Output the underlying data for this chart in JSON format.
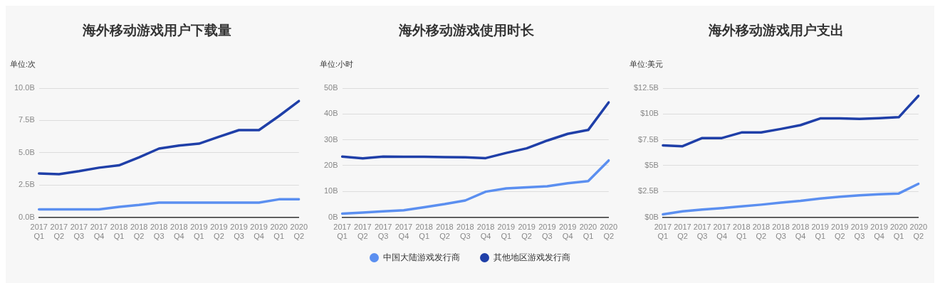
{
  "chart_data": [
    {
      "type": "line",
      "title": "海外移动游戏用户下载量",
      "ylabel": "单位:次",
      "categories": [
        "2017 Q1",
        "2017 Q2",
        "2017 Q3",
        "2017 Q4",
        "2018 Q1",
        "2018 Q2",
        "2018 Q3",
        "2018 Q4",
        "2019 Q1",
        "2019 Q2",
        "2019 Q3",
        "2019 Q4",
        "2020 Q1",
        "2020 Q2"
      ],
      "series": [
        {
          "name": "中国大陆游戏发行商",
          "color": "#5b8ff0",
          "values": [
            0.61,
            0.61,
            0.61,
            0.61,
            0.8,
            0.95,
            1.14,
            1.14,
            1.14,
            1.14,
            1.14,
            1.14,
            1.39,
            1.39
          ]
        },
        {
          "name": "其他地区游戏发行商",
          "color": "#1f3fa8",
          "values": [
            3.39,
            3.34,
            3.57,
            3.84,
            4.02,
            4.64,
            5.32,
            5.55,
            5.7,
            6.23,
            6.75,
            6.75,
            7.84,
            9.0
          ]
        }
      ],
      "ylim": [
        0,
        10
      ],
      "yticks": [
        {
          "value": 0,
          "label": "0.0B"
        },
        {
          "value": 2.5,
          "label": "2.5B"
        },
        {
          "value": 5,
          "label": "5.0B"
        },
        {
          "value": 7.5,
          "label": "7.5B"
        },
        {
          "value": 10,
          "label": "10.0B"
        }
      ],
      "grid": "y",
      "marker": "none",
      "legend": "bottom"
    },
    {
      "type": "line",
      "title": "海外移动游戏使用时长",
      "ylabel": "单位:小时",
      "categories": [
        "2017 Q1",
        "2017 Q2",
        "2017 Q3",
        "2017 Q4",
        "2018 Q1",
        "2018 Q2",
        "2018 Q3",
        "2018 Q4",
        "2019 Q1",
        "2019 Q2",
        "2019 Q3",
        "2019 Q4",
        "2020 Q1",
        "2020 Q2"
      ],
      "series": [
        {
          "color": "#5b8ff0",
          "values": [
            1.4,
            1.8,
            2.3,
            2.7,
            3.9,
            5.1,
            6.5,
            9.9,
            11.2,
            11.6,
            12.0,
            13.2,
            14.0,
            22.0
          ]
        },
        {
          "color": "#1f3fa8",
          "values": [
            23.5,
            22.8,
            23.5,
            23.4,
            23.4,
            23.3,
            23.2,
            22.9,
            24.9,
            26.7,
            29.7,
            32.3,
            33.8,
            44.5
          ]
        }
      ],
      "ylim": [
        0,
        50
      ],
      "yticks": [
        {
          "value": 0,
          "label": "0B"
        },
        {
          "value": 10,
          "label": "10B"
        },
        {
          "value": 20,
          "label": "20B"
        },
        {
          "value": 30,
          "label": "30B"
        },
        {
          "value": 40,
          "label": "40B"
        },
        {
          "value": 50,
          "label": "50B"
        }
      ],
      "grid": "y",
      "marker": "none"
    },
    {
      "type": "line",
      "title": "海外移动游戏用户支出",
      "ylabel": "单位:美元",
      "categories": [
        "2017 Q1",
        "2017 Q2",
        "2017 Q3",
        "2017 Q4",
        "2018 Q1",
        "2018 Q2",
        "2018 Q3",
        "2018 Q4",
        "2019 Q1",
        "2019 Q2",
        "2019 Q3",
        "2019 Q4",
        "2020 Q1",
        "2020 Q2"
      ],
      "series": [
        {
          "color": "#5b8ff0",
          "values": [
            0.28,
            0.57,
            0.74,
            0.88,
            1.05,
            1.22,
            1.42,
            1.59,
            1.82,
            1.99,
            2.13,
            2.22,
            2.3,
            3.24
          ]
        },
        {
          "color": "#1f3fa8",
          "values": [
            6.96,
            6.88,
            7.67,
            7.67,
            8.21,
            8.21,
            8.55,
            8.92,
            9.57,
            9.57,
            9.52,
            9.6,
            9.69,
            11.76
          ]
        }
      ],
      "ylim": [
        0,
        12.5
      ],
      "yticks": [
        {
          "value": 0,
          "label": "$0B"
        },
        {
          "value": 2.5,
          "label": "$2.5B"
        },
        {
          "value": 5,
          "label": "$5B"
        },
        {
          "value": 7.5,
          "label": "$7.5B"
        },
        {
          "value": 10,
          "label": "$10B"
        },
        {
          "value": 12.5,
          "label": "$12.5B"
        }
      ],
      "grid": "y",
      "marker": "none"
    }
  ]
}
